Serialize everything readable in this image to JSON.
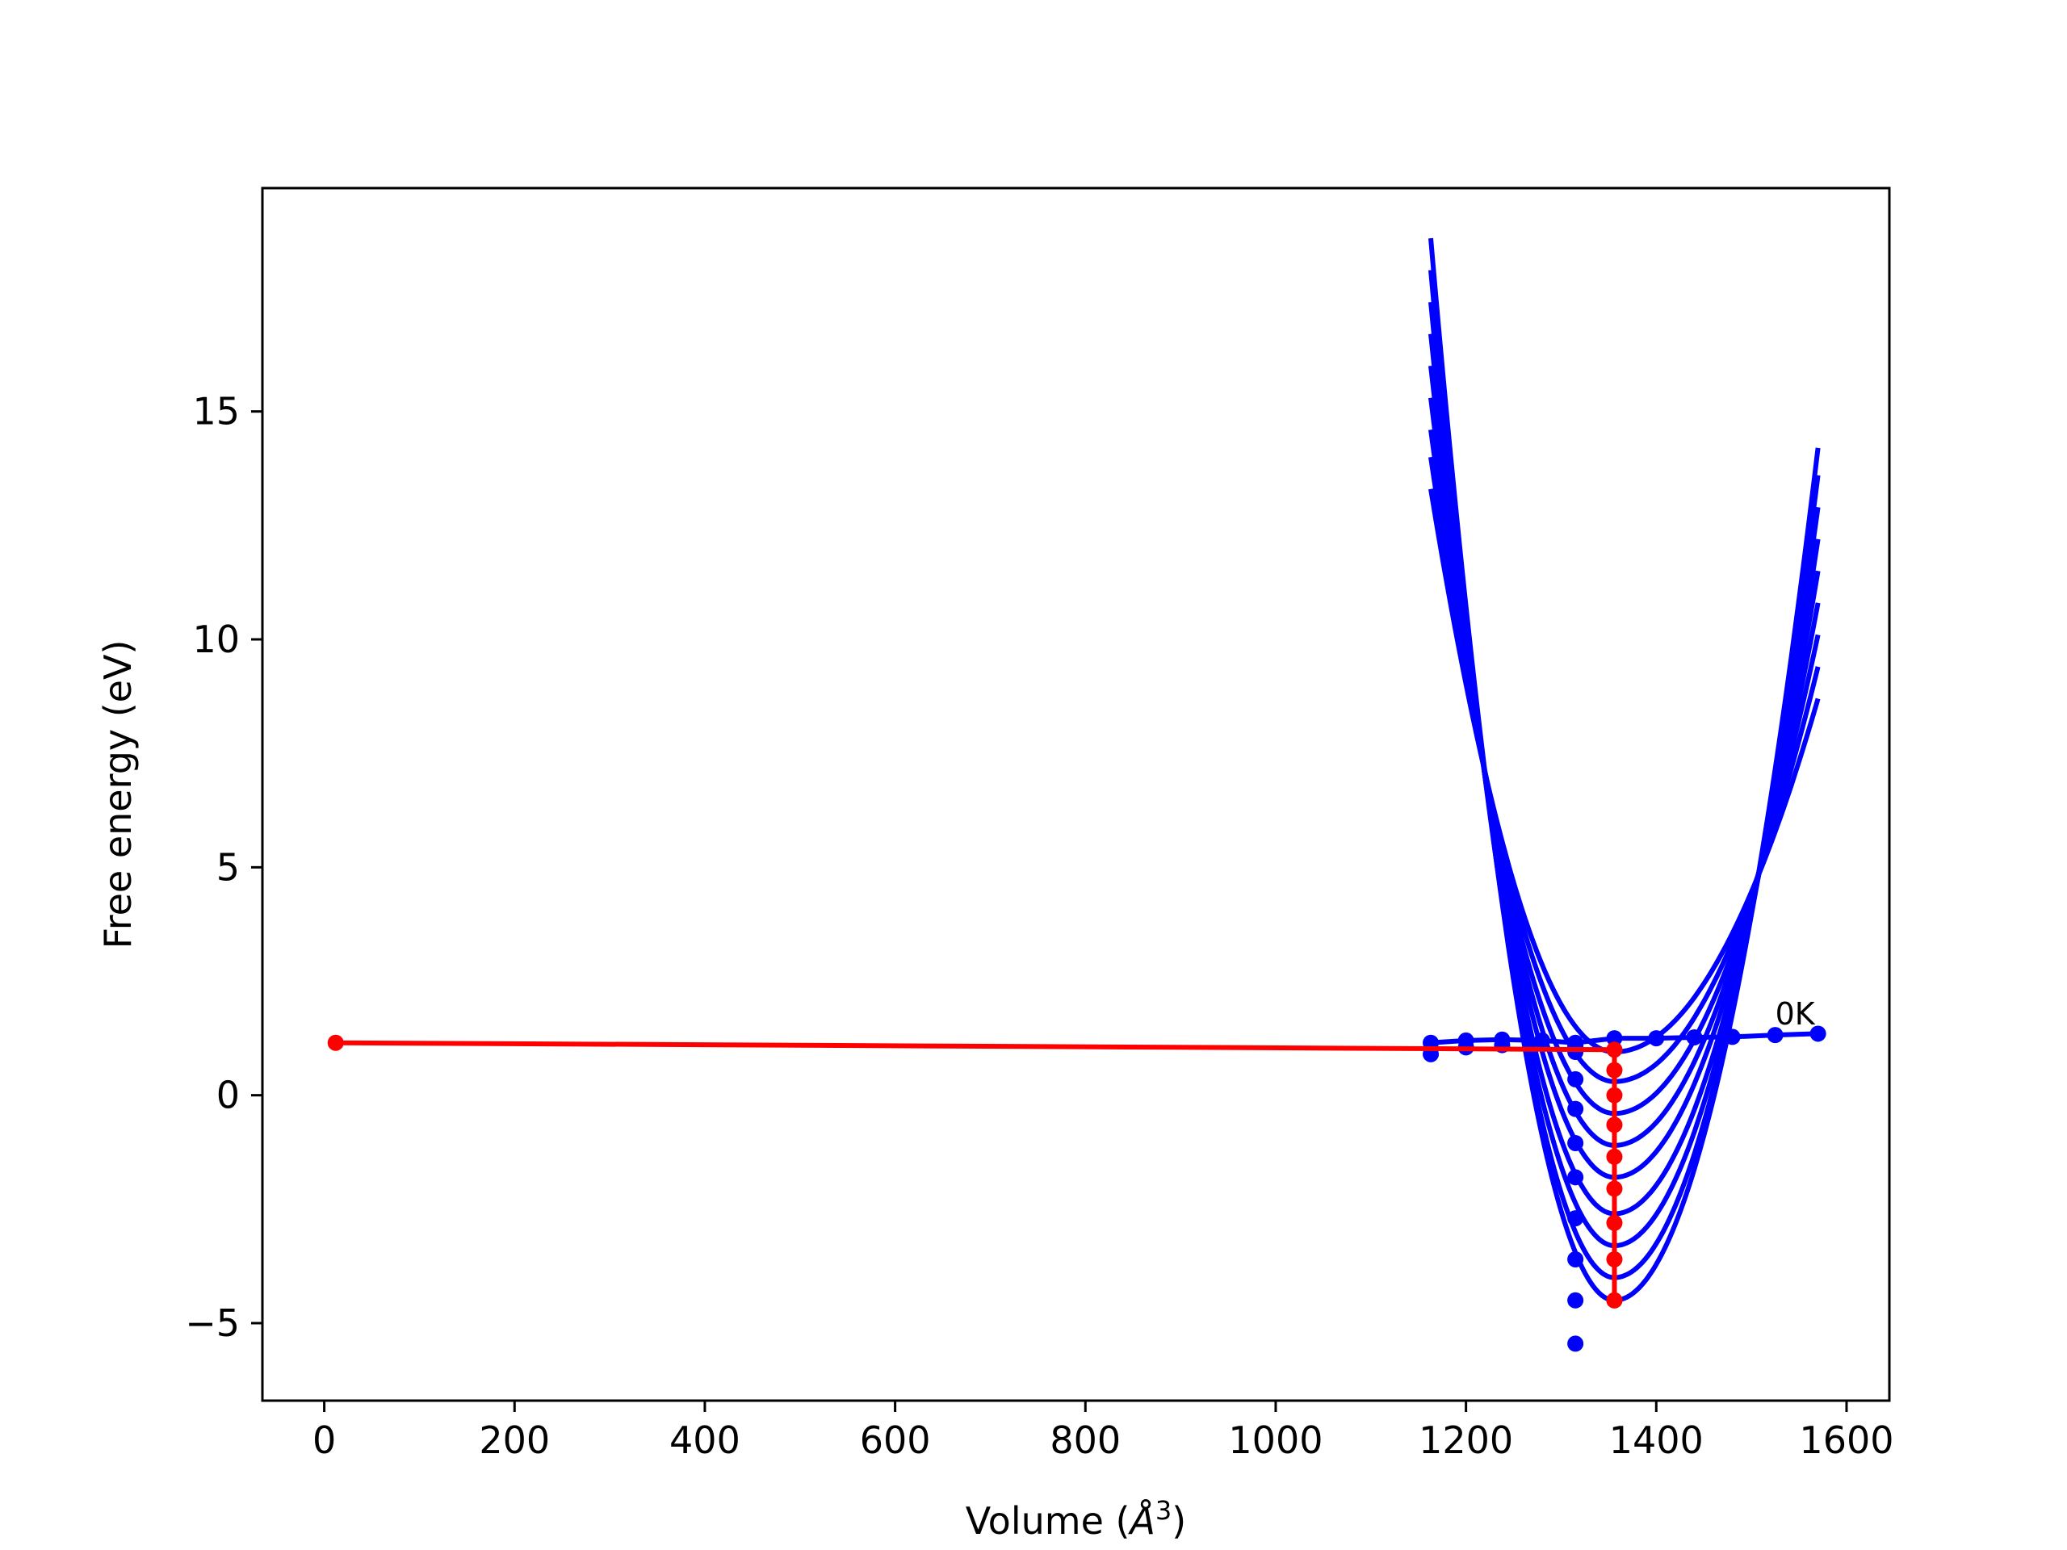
{
  "chart_data": {
    "type": "line",
    "title": "",
    "xlabel": "Volume (",
    "xlabel_unit_base": "Å",
    "xlabel_unit_exp": "3",
    "xlabel_close": ")",
    "ylabel": "Free energy (eV)",
    "xlim": [
      -65,
      1645
    ],
    "ylim": [
      -6.7,
      19.9
    ],
    "xticks": [
      0,
      200,
      400,
      600,
      800,
      1000,
      1200,
      1400,
      1600
    ],
    "xtick_labels": [
      "0",
      "200",
      "400",
      "600",
      "800",
      "1000",
      "1200",
      "1400",
      "1600"
    ],
    "yticks": [
      -5,
      0,
      5,
      10,
      15
    ],
    "ytick_labels": [
      "−5",
      "0",
      "5",
      "10",
      "15"
    ],
    "grid": false,
    "annotation": {
      "text": "0K",
      "x": 1525,
      "y": 1.55
    },
    "colors": {
      "curves": "#0000ff",
      "path": "#ff0000"
    },
    "series": [
      {
        "kind": "eos-curve-family",
        "color": "#0000ff",
        "x_range": [
          1163,
          1570
        ],
        "curves": [
          {
            "v0": 1356,
            "f_min": 0.95,
            "f_left": 13.3,
            "f_right": 8.7
          },
          {
            "v0": 1356,
            "f_min": 0.3,
            "f_left": 14.0,
            "f_right": 9.4
          },
          {
            "v0": 1356,
            "f_min": -0.4,
            "f_left": 14.6,
            "f_right": 10.1
          },
          {
            "v0": 1356,
            "f_min": -1.1,
            "f_left": 15.3,
            "f_right": 10.8
          },
          {
            "v0": 1356,
            "f_min": -1.8,
            "f_left": 16.0,
            "f_right": 11.5
          },
          {
            "v0": 1356,
            "f_min": -2.6,
            "f_left": 16.7,
            "f_right": 12.2
          },
          {
            "v0": 1356,
            "f_min": -3.3,
            "f_left": 17.4,
            "f_right": 12.9
          },
          {
            "v0": 1356,
            "f_min": -4.0,
            "f_left": 18.1,
            "f_right": 13.6
          },
          {
            "v0": 1356,
            "f_min": -4.5,
            "f_left": 18.8,
            "f_right": 14.2
          }
        ]
      },
      {
        "kind": "line-with-points",
        "color": "#0000ff",
        "x": [
          1163,
          1200,
          1238,
          1280,
          1315,
          1356,
          1400,
          1440,
          1480,
          1525,
          1570
        ],
        "y": [
          1.15,
          1.2,
          1.22,
          1.2,
          1.15,
          1.25,
          1.25,
          1.27,
          1.28,
          1.32,
          1.35
        ]
      },
      {
        "kind": "scatter",
        "color": "#0000ff",
        "x": [
          1163,
          1200,
          1238,
          1315,
          1315,
          1315,
          1315,
          1315,
          1315,
          1315,
          1315,
          1315,
          1315,
          1315
        ],
        "y": [
          0.9,
          1.05,
          1.1,
          1.05,
          0.35,
          -0.3,
          -1.05,
          -1.8,
          -2.7,
          -3.6,
          -4.5,
          -5.45,
          0.95,
          1.1
        ]
      },
      {
        "kind": "line-with-points",
        "color": "#ff0000",
        "x": [
          12,
          1356,
          1356,
          1356,
          1356,
          1356,
          1356,
          1356,
          1356,
          1356,
          1356
        ],
        "y": [
          1.15,
          1.0,
          0.55,
          0.0,
          -0.65,
          -1.35,
          -2.05,
          -2.8,
          -3.6,
          -4.5,
          -4.5
        ]
      }
    ]
  }
}
